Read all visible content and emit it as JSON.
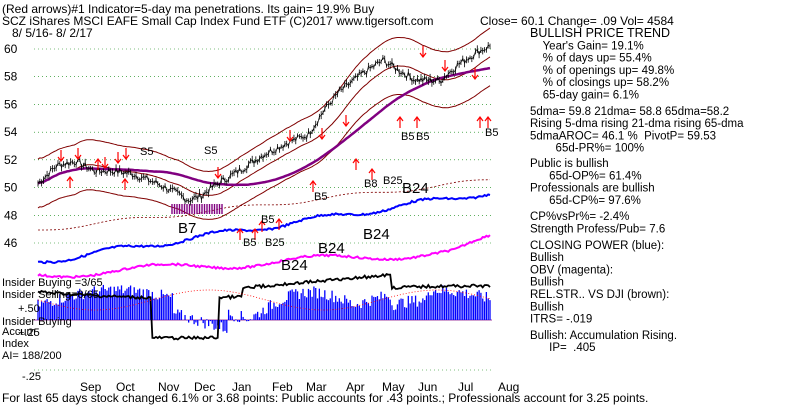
{
  "header": {
    "line1": "(Red arrows)#1 Indicator=5-day ma penetrations. Its gain= 19.9% Buy",
    "line2": "SCZ   iShares MSCI EAFE Small Cap Index Fund ETF  (C)2017 www.tigersoft.com",
    "line3": "8/ 5/16- 8/ 2/17",
    "close_info": "Close=  60.1  Change= .09 Vol= 4584"
  },
  "footer": "For last 65 days stock changed  6.1% or  3.68 points:  Public accounts for  .43 points.; Professionals account for  3.25 points.",
  "chart_data": {
    "type": "line",
    "title": "SCZ   iShares MSCI EAFE Small Cap Index Fund ETF",
    "y_ticks": [
      "60",
      "58",
      "56",
      "54",
      "52",
      "50",
      "48",
      "46"
    ],
    "y_tick_values": [
      60,
      58,
      56,
      54,
      52,
      50,
      48,
      46
    ],
    "months": [
      "Sep",
      "Oct",
      "Nov",
      "Dec",
      "Jan",
      "Feb",
      "Mar",
      "Apr",
      "May",
      "Jun",
      "Jul",
      "Aug"
    ],
    "series": [
      {
        "name": "CLOSING POWER (blue)"
      },
      {
        "name": "OBV (magenta)"
      },
      {
        "name": "REL.STR.. VS DJI (brown)"
      }
    ],
    "signals": [
      "S5",
      "S5",
      "B7",
      "B5",
      "B5",
      "B25",
      "B5",
      "B8",
      "B25",
      "B24",
      "B24",
      "B24",
      "B24",
      "B5",
      "B5",
      "B5"
    ],
    "insider": {
      "buying": "Insider Buying =3/65",
      "selling": "Insider Selling=0/65",
      "plus50": "+.50",
      "buying2": "Insider Buying",
      "accum": "Accum",
      "plus25": "+.25",
      "index": "Index",
      "ai": "AI= 188/200",
      "minus25": "-.25"
    }
  },
  "right_panel": [
    "BULLISH PRICE TREND",
    "    Year's Gain= 19.1%",
    "    % of days up= 55.4%",
    "    % of openings up= 49.8%",
    "    % of closings up= 58.2%",
    "    65-day gain= 6.1%",
    "5dma= 59.8 21dma= 58.8 65dma=58.2",
    "Rising 5-dma rising 21-dma rising 65-dma",
    "5dmaAROC= 46.1 %  PivotP= 59.53",
    "        65d-PR%= 100%",
    "Public is bullish",
    "      65d-OP%= 61.4%",
    "Professionals are bullish",
    "      65d-CP%= 97.6%",
    "CP%vsPr%= -2.4%",
    "Strength Profess/Pub= 7.6",
    "CLOSING POWER (blue):",
    "Bullish",
    "OBV (magenta):",
    "Bullish",
    "REL.STR.. VS DJI (brown):",
    "Bullish",
    "ITRS= -.019",
    "Bullish: Accumulation Rising.",
    "      IP=  .405"
  ],
  "colors": {
    "price": "#000000",
    "ma65": "#800080",
    "band": "#800000",
    "closing_power": "#0000ff",
    "obv": "#ff00ff",
    "accum": "#0000ff",
    "signal_arrow": "#ff0000",
    "b7": "#800080",
    "grid": "#008000"
  }
}
